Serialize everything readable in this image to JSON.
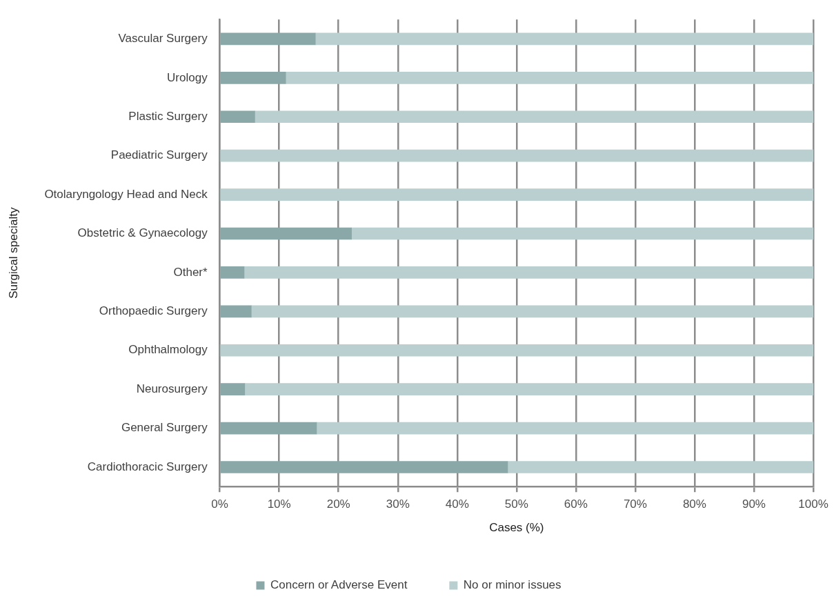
{
  "chart_data": {
    "type": "bar",
    "orientation": "horizontal",
    "stacked": true,
    "xlabel": "Cases (%)",
    "ylabel": "Surgical specialty",
    "categories": [
      "Vascular Surgery",
      "Urology",
      "Plastic Surgery",
      "Paediatric Surgery",
      "Otolaryngology Head and Neck",
      "Obstetric & Gynaecology",
      "Other*",
      "Orthopaedic Surgery",
      "Ophthalmology",
      "Neurosurgery",
      "General Surgery",
      "Cardiothoracic Surgery"
    ],
    "series": [
      {
        "name": "Concern or Adverse Event",
        "color": "#8aa8a8",
        "values": [
          16.1,
          11.1,
          5.9,
          0,
          0,
          22.2,
          4.1,
          5.3,
          0,
          4.2,
          16.3,
          48.5
        ]
      },
      {
        "name": "No or minor issues",
        "color": "#b9cfd0",
        "values": [
          83.9,
          88.9,
          94.1,
          100,
          100,
          77.8,
          95.9,
          94.7,
          100,
          95.8,
          83.7,
          51.5
        ]
      }
    ],
    "xlim": [
      0,
      100
    ],
    "xticks": [
      {
        "value": 0,
        "label": "0%"
      },
      {
        "value": 10,
        "label": "10%"
      },
      {
        "value": 20,
        "label": "20%"
      },
      {
        "value": 30,
        "label": "30%"
      },
      {
        "value": 40,
        "label": "40%"
      },
      {
        "value": 50,
        "label": "50%"
      },
      {
        "value": 60,
        "label": "60%"
      },
      {
        "value": 70,
        "label": "70%"
      },
      {
        "value": 80,
        "label": "80%"
      },
      {
        "value": 90,
        "label": "90%"
      },
      {
        "value": 100,
        "label": "100%"
      }
    ],
    "grid": "x",
    "legend": "bottom"
  }
}
